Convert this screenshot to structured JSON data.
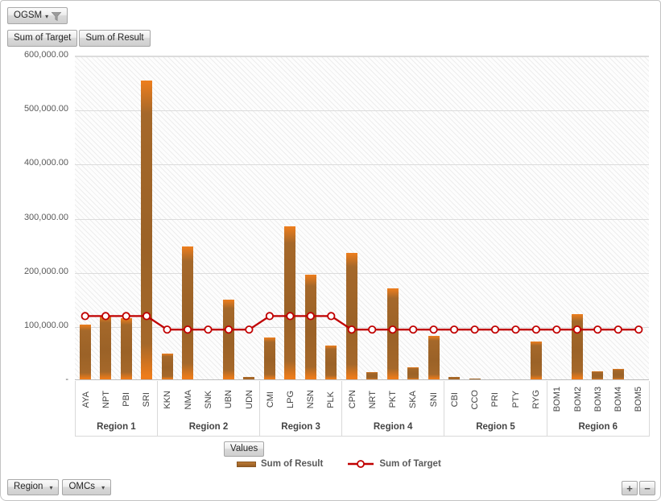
{
  "filter_button": {
    "label": "OGSM"
  },
  "field_buttons": [
    {
      "label": "Sum of Target"
    },
    {
      "label": "Sum of Result"
    }
  ],
  "axis_field_button": {
    "label": "Values"
  },
  "axis_dropdowns": [
    {
      "label": "Region"
    },
    {
      "label": "OMCs"
    }
  ],
  "zoom_controls": {
    "plus": "+",
    "minus": "−"
  },
  "legend": {
    "items": [
      {
        "label": "Sum of Result",
        "marker": "bar-swatch",
        "color": "#A5682A"
      },
      {
        "label": "Sum of Target",
        "marker": "line-marker",
        "color": "#C00000"
      }
    ]
  },
  "colors": {
    "bar_body": "#A5682A",
    "bar_tip": "#EE7C1A",
    "target_line": "#C00000",
    "gridline": "#DCDCDC",
    "axis_text": "#595959"
  },
  "chart_data": {
    "type": "combo",
    "ylim": [
      0,
      600000
    ],
    "ytick_step": 100000,
    "ytick_labels": [
      "-",
      "100,000.00",
      "200,000.00",
      "300,000.00",
      "400,000.00",
      "500,000.00",
      "600,000.00"
    ],
    "grid": true,
    "legend_position": "bottom",
    "groups": [
      {
        "label": "Region 1",
        "categories": [
          "AYA",
          "NPT",
          "PBI",
          "SRI"
        ]
      },
      {
        "label": "Region 2",
        "categories": [
          "KKN",
          "NMA",
          "SNK",
          "UBN",
          "UDN"
        ]
      },
      {
        "label": "Region 3",
        "categories": [
          "CMI",
          "LPG",
          "NSN",
          "PLK"
        ]
      },
      {
        "label": "Region 4",
        "categories": [
          "CPN",
          "NRT",
          "PKT",
          "SKA",
          "SNI"
        ]
      },
      {
        "label": "Region 5",
        "categories": [
          "CBI",
          "CCO",
          "PRI",
          "PTY",
          "RYG"
        ]
      },
      {
        "label": "Region 6",
        "categories": [
          "BOM1",
          "BOM2",
          "BOM3",
          "BOM4",
          "BOM5"
        ]
      }
    ],
    "series": [
      {
        "name": "Sum of Result",
        "type": "bar",
        "color": "#A5682A",
        "values": [
          102000,
          118000,
          113000,
          553000,
          48000,
          246000,
          0,
          147000,
          5000,
          78000,
          283000,
          193000,
          63000,
          234000,
          13000,
          169000,
          22000,
          80000,
          5000,
          2000,
          0,
          0,
          70000,
          0,
          120000,
          15000,
          20000,
          0
        ]
      },
      {
        "name": "Sum of Target",
        "type": "line",
        "color": "#C00000",
        "values": [
          120000,
          120000,
          120000,
          120000,
          95000,
          95000,
          95000,
          95000,
          95000,
          120000,
          120000,
          120000,
          120000,
          95000,
          95000,
          95000,
          95000,
          95000,
          95000,
          95000,
          95000,
          95000,
          95000,
          95000,
          95000,
          95000,
          95000,
          95000
        ]
      }
    ]
  }
}
